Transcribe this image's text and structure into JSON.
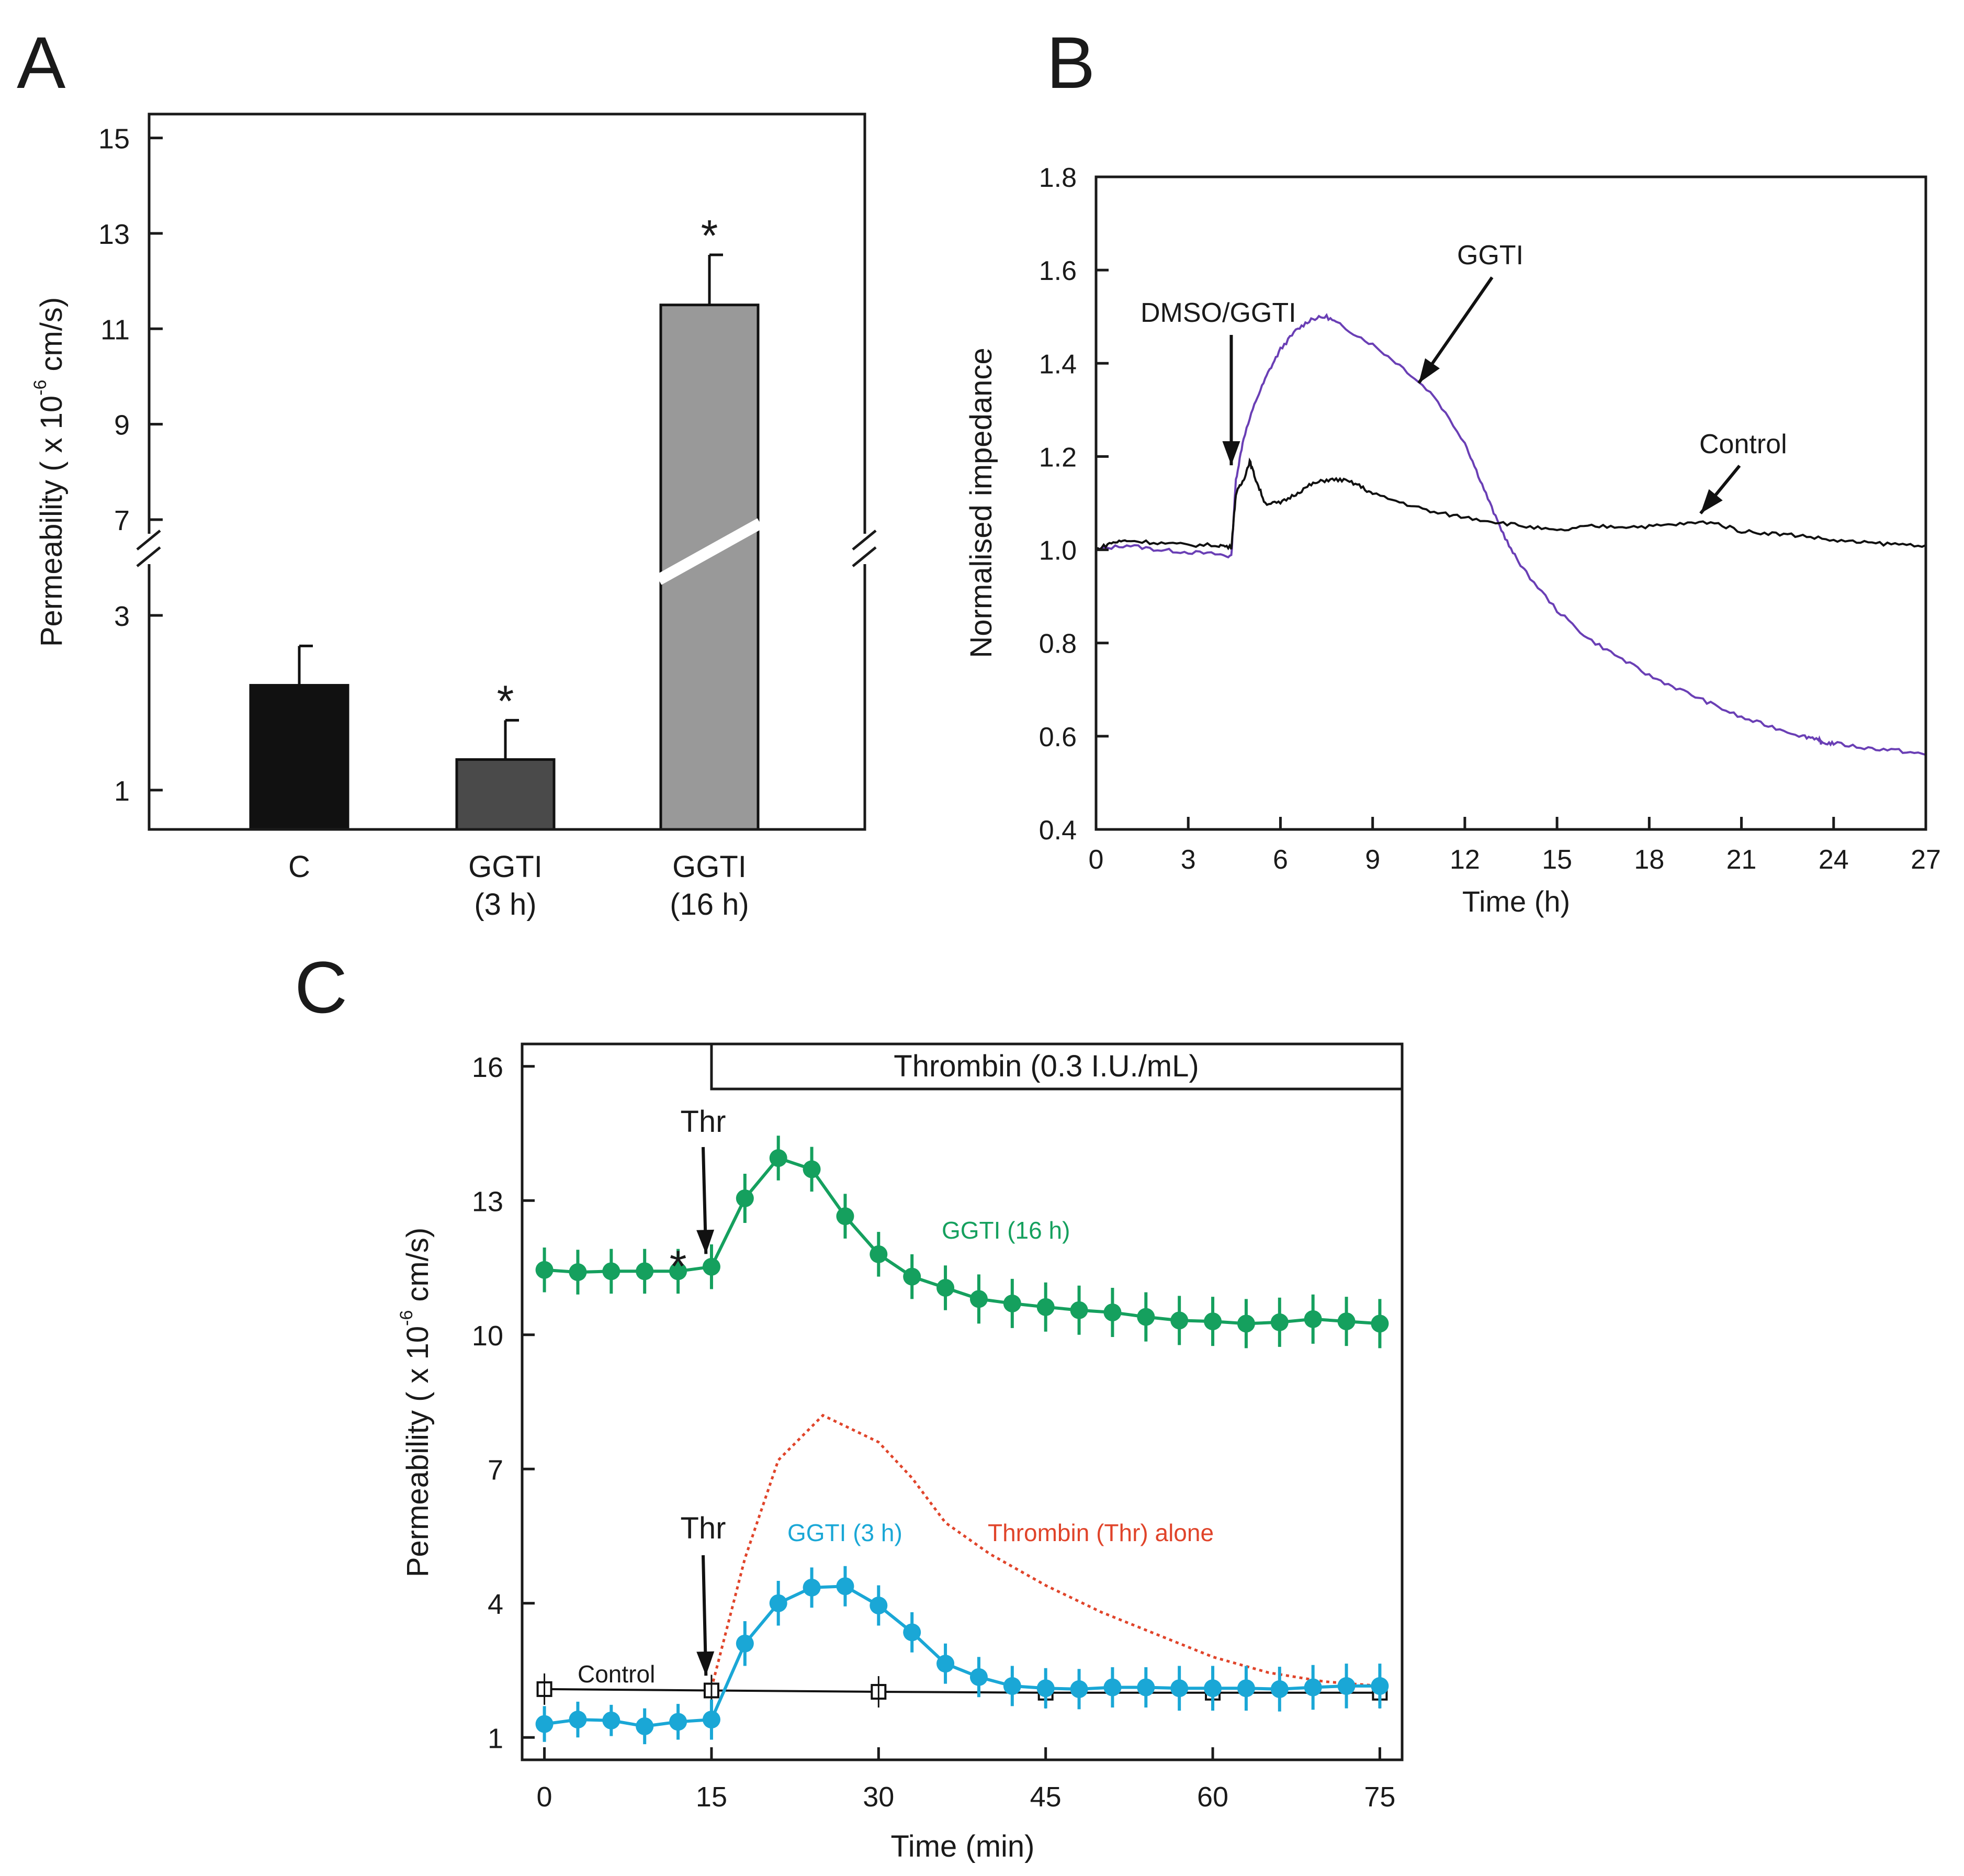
{
  "panels": {
    "a": {
      "letter": "A"
    },
    "b": {
      "letter": "B"
    },
    "c": {
      "letter": "C"
    }
  },
  "chart_data": [
    {
      "type": "bar",
      "panel": "A",
      "ylabel_main": "Permeability ( x 10",
      "ylabel_exp": "-6",
      "ylabel_unit": "cm/s)",
      "categories": [
        {
          "line1": "C",
          "line2": ""
        },
        {
          "line1": "GGTI",
          "line2": "(3 h)"
        },
        {
          "line1": "GGTI",
          "line2": "(16 h)"
        }
      ],
      "values": [
        2.2,
        1.35,
        11.5
      ],
      "errors": [
        0.45,
        0.45,
        1.05
      ],
      "significance": [
        "",
        "*",
        "*"
      ],
      "colors": [
        "#111111",
        "#4a4a4a",
        "#999999"
      ],
      "yticks": [
        1,
        3,
        7,
        9,
        11,
        13,
        15
      ],
      "axis_break": {
        "from": 3,
        "to": 7
      },
      "ylim": [
        0.55,
        15.5
      ]
    },
    {
      "type": "line",
      "panel": "B",
      "xlabel": "Time (h)",
      "ylabel": "Normalised impedance",
      "xlim": [
        0,
        27
      ],
      "ylim": [
        0.4,
        1.8
      ],
      "xticks": [
        0,
        3,
        6,
        9,
        12,
        15,
        18,
        21,
        24,
        27
      ],
      "yticks": [
        0.4,
        0.6,
        0.8,
        1.0,
        1.2,
        1.4,
        1.6,
        1.8
      ],
      "series": [
        {
          "name": "GGTI",
          "color": "#6a3fb5",
          "x": [
            0,
            1,
            2,
            3,
            4,
            4.4,
            4.55,
            4.8,
            5.2,
            5.6,
            6,
            6.5,
            7,
            7.5,
            8,
            9,
            10,
            11,
            12,
            12.5,
            13,
            13.5,
            14,
            15,
            16,
            17,
            18,
            19,
            20,
            21,
            22,
            23,
            23.5,
            23.6,
            24,
            25,
            26,
            27
          ],
          "y": [
            1.0,
            1.01,
            1.0,
            0.995,
            0.99,
            0.985,
            1.15,
            1.24,
            1.32,
            1.38,
            1.43,
            1.47,
            1.495,
            1.5,
            1.48,
            1.44,
            1.39,
            1.33,
            1.23,
            1.15,
            1.07,
            1.0,
            0.95,
            0.87,
            0.81,
            0.77,
            0.73,
            0.7,
            0.67,
            0.64,
            0.62,
            0.6,
            0.595,
            0.585,
            0.585,
            0.575,
            0.57,
            0.56
          ]
        },
        {
          "name": "Control",
          "color": "#111111",
          "x": [
            0,
            0.5,
            1,
            2,
            3,
            4,
            4.4,
            4.55,
            4.8,
            5,
            5.2,
            5.5,
            6,
            6.5,
            7,
            7.5,
            8,
            8.5,
            9,
            10,
            11,
            12,
            13,
            14,
            15,
            16,
            17,
            18,
            19,
            20,
            21,
            22,
            23,
            24,
            25,
            26,
            27
          ],
          "y": [
            1.0,
            1.015,
            1.02,
            1.015,
            1.01,
            1.01,
            1.005,
            1.12,
            1.15,
            1.19,
            1.15,
            1.1,
            1.1,
            1.12,
            1.14,
            1.15,
            1.15,
            1.14,
            1.12,
            1.1,
            1.08,
            1.07,
            1.06,
            1.05,
            1.04,
            1.05,
            1.05,
            1.05,
            1.055,
            1.06,
            1.04,
            1.035,
            1.03,
            1.02,
            1.015,
            1.012,
            1.01
          ]
        }
      ],
      "annotations": [
        {
          "text": "DMSO/GGTI",
          "arrow_to": [
            4.4,
            1.17
          ]
        },
        {
          "text": "GGTI",
          "arrow_to": [
            10.5,
            1.38
          ]
        },
        {
          "text": "Control",
          "arrow_to": [
            19.5,
            1.06
          ]
        }
      ]
    },
    {
      "type": "line",
      "panel": "C",
      "xlabel": "Time (min)",
      "ylabel_main": "Permeability ( x 10",
      "ylabel_exp": "-6",
      "ylabel_unit": "cm/s)",
      "xlim": [
        -2,
        77
      ],
      "ylim": [
        0.5,
        16.5
      ],
      "xticks": [
        0,
        15,
        30,
        45,
        60,
        75
      ],
      "yticks": [
        1,
        4,
        7,
        10,
        13,
        16
      ],
      "treatment_bar": {
        "label": "Thrombin (0.3 I.U./mL)",
        "x_start": 15,
        "x_end": 77
      },
      "series": [
        {
          "name": "GGTI (16 h)",
          "color": "#15a05e",
          "x": [
            0,
            3,
            6,
            9,
            12,
            15,
            18,
            21,
            24,
            27,
            30,
            33,
            36,
            39,
            42,
            45,
            48,
            51,
            54,
            57,
            60,
            63,
            66,
            69,
            72,
            75
          ],
          "y": [
            11.45,
            11.4,
            11.42,
            11.42,
            11.42,
            11.52,
            13.05,
            13.95,
            13.7,
            12.65,
            11.8,
            11.3,
            11.05,
            10.8,
            10.7,
            10.62,
            10.55,
            10.5,
            10.4,
            10.32,
            10.3,
            10.25,
            10.28,
            10.35,
            10.3,
            10.25
          ],
          "errors": [
            0.5,
            0.5,
            0.5,
            0.5,
            0.5,
            0.5,
            0.55,
            0.5,
            0.5,
            0.5,
            0.5,
            0.5,
            0.5,
            0.55,
            0.55,
            0.55,
            0.55,
            0.55,
            0.55,
            0.55,
            0.55,
            0.55,
            0.55,
            0.55,
            0.55,
            0.55
          ]
        },
        {
          "name": "GGTI (3 h)",
          "color": "#1aa7d6",
          "x": [
            0,
            3,
            6,
            9,
            12,
            15,
            18,
            21,
            24,
            27,
            30,
            33,
            36,
            39,
            42,
            45,
            48,
            51,
            54,
            57,
            60,
            63,
            66,
            69,
            72,
            75
          ],
          "y": [
            1.3,
            1.4,
            1.38,
            1.25,
            1.35,
            1.4,
            3.1,
            4.0,
            4.35,
            4.38,
            3.95,
            3.35,
            2.65,
            2.35,
            2.15,
            2.1,
            2.08,
            2.12,
            2.12,
            2.1,
            2.1,
            2.1,
            2.08,
            2.12,
            2.15,
            2.15
          ],
          "errors": [
            0.4,
            0.4,
            0.35,
            0.4,
            0.4,
            0.45,
            0.5,
            0.5,
            0.45,
            0.45,
            0.45,
            0.45,
            0.45,
            0.45,
            0.45,
            0.45,
            0.45,
            0.45,
            0.45,
            0.5,
            0.5,
            0.5,
            0.5,
            0.5,
            0.5,
            0.5
          ]
        },
        {
          "name": "Control",
          "color": "#111111",
          "marker": "open-square",
          "x": [
            0,
            15,
            30,
            45,
            60,
            75
          ],
          "y": [
            2.08,
            2.05,
            2.02,
            2.0,
            2.0,
            2.0
          ]
        },
        {
          "name": "Thrombin (Thr) alone",
          "color": "#e0442a",
          "style": "dotted",
          "x": [
            15,
            18,
            21,
            25,
            30,
            33,
            36,
            40,
            45,
            50,
            55,
            60,
            65,
            70,
            75
          ],
          "y": [
            2.1,
            5.0,
            7.2,
            8.2,
            7.6,
            6.8,
            5.8,
            5.1,
            4.4,
            3.8,
            3.3,
            2.8,
            2.45,
            2.25,
            2.15
          ]
        }
      ],
      "annotations": [
        {
          "text": "Thr",
          "arrow_to": [
            14.5,
            11.9
          ]
        },
        {
          "text": "*",
          "at": [
            12,
            11.9
          ]
        },
        {
          "text": "Thr",
          "arrow_to": [
            14.5,
            3.2
          ]
        },
        {
          "text": "Control",
          "at": [
            8,
            2.3
          ]
        }
      ]
    }
  ]
}
